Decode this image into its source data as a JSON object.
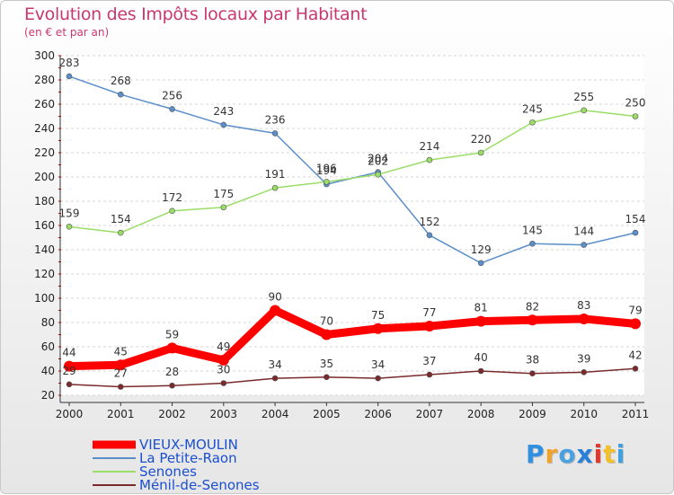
{
  "title": "Evolution des Impôts locaux par Habitant",
  "subtitle": "(en € et par an)",
  "logo": {
    "letters": [
      "P",
      "r",
      "o",
      "x",
      "i",
      "t",
      "i"
    ],
    "colors": [
      "#2f8fe0",
      "#f2a12a",
      "#4aa0e0",
      "#2a7fd8",
      "#e2372a",
      "#f2c12a",
      "#3ea0e0"
    ]
  },
  "chart_data": {
    "type": "line",
    "x": [
      "2000",
      "2001",
      "2002",
      "2003",
      "2004",
      "2005",
      "2006",
      "2007",
      "2008",
      "2009",
      "2010",
      "2011"
    ],
    "ylim": [
      20,
      300
    ],
    "yticks": [
      20,
      40,
      60,
      80,
      100,
      120,
      140,
      160,
      180,
      200,
      220,
      240,
      260,
      280,
      300
    ],
    "grid": "horizontal-dashed",
    "legend_position": "bottom-left",
    "series": [
      {
        "name": "VIEUX-MOULIN",
        "color": "#ff0000",
        "width": 9,
        "values": [
          44,
          45,
          59,
          49,
          90,
          70,
          75,
          77,
          81,
          82,
          83,
          79
        ]
      },
      {
        "name": "La Petite-Raon",
        "color": "#5b8fc9",
        "width": 1.5,
        "values": [
          283,
          268,
          256,
          243,
          236,
          194,
          204,
          152,
          129,
          145,
          144,
          154
        ]
      },
      {
        "name": "Senones",
        "color": "#99dd66",
        "width": 1.5,
        "values": [
          159,
          154,
          172,
          175,
          191,
          196,
          202,
          214,
          220,
          245,
          255,
          250
        ]
      },
      {
        "name": "Ménil-de-Senones",
        "color": "#7a2a2a",
        "width": 1.5,
        "values": [
          29,
          27,
          28,
          30,
          34,
          35,
          34,
          37,
          40,
          38,
          39,
          42
        ]
      }
    ]
  }
}
